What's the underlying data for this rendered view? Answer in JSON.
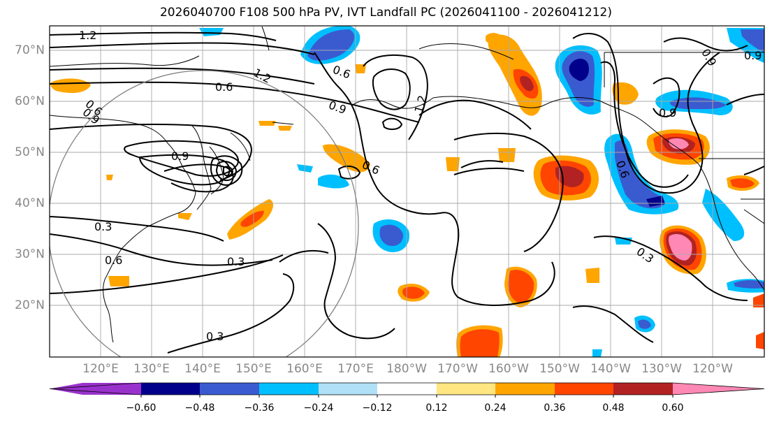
{
  "title": "2026040700 F108 500 hPa PV, IVT Landfall PC (2026041100 - 2026041212)",
  "lat_labels": [
    "70°N",
    "60°N",
    "50°N",
    "40°N",
    "30°N",
    "20°N"
  ],
  "lon_labels": [
    "120°E",
    "130°E",
    "140°E",
    "150°E",
    "160°E",
    "170°E",
    "180°W",
    "170°W",
    "160°W",
    "150°W",
    "140°W",
    "130°W",
    "120°W"
  ],
  "contour_labels": [
    "1.2",
    "1.2",
    "1.2",
    "0.6",
    "0.6",
    "0.9",
    "0.9",
    "0.6",
    "0.9",
    "0.6",
    "0.6",
    "0.3",
    "0.6",
    "0.3",
    "0.3",
    "0.3",
    "0.9",
    "0.9",
    "0.9"
  ],
  "colorbar": {
    "ticks": [
      "−0.60",
      "−0.48",
      "−0.36",
      "−0.24",
      "−0.12",
      "0.12",
      "0.24",
      "0.36",
      "0.48",
      "0.60"
    ],
    "colors": [
      "#9932cc",
      "#00008b",
      "#3a5bd0",
      "#00bfff",
      "#b0e0f6",
      "#ffffff",
      "#ffe680",
      "#ffa500",
      "#ff4500",
      "#b22222",
      "#ff88b4"
    ]
  },
  "colors": {
    "coast": "#000000",
    "grid": "#aaaaaa",
    "circle": "#808080"
  }
}
